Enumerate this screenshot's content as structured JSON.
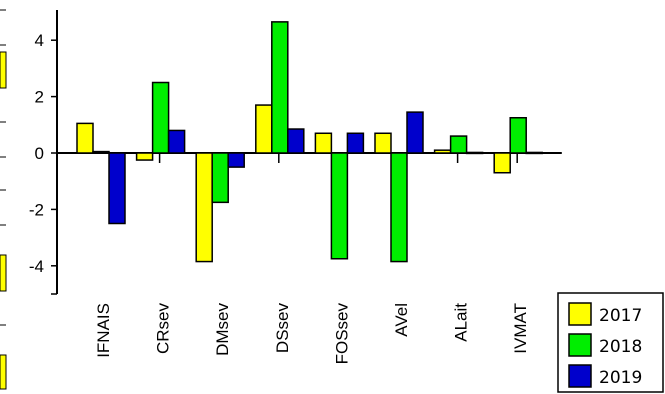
{
  "chart_data": {
    "type": "bar",
    "categories": [
      "IFNAIS",
      "CRsev",
      "DMsev",
      "DSsev",
      "FOSsev",
      "AVel",
      "ALait",
      "IVMAT"
    ],
    "series": [
      {
        "name": "2017",
        "color": "#ffff00",
        "values": [
          1.05,
          -0.25,
          -3.85,
          1.7,
          0.7,
          0.7,
          0.1,
          -0.7
        ]
      },
      {
        "name": "2018",
        "color": "#00ee00",
        "values": [
          0.05,
          2.5,
          -1.75,
          4.65,
          -3.75,
          -3.85,
          0.6,
          1.25
        ]
      },
      {
        "name": "2019",
        "color": "#0000cc",
        "values": [
          -2.5,
          0.8,
          -0.5,
          0.85,
          0.7,
          1.45,
          0.02,
          0.02
        ]
      }
    ],
    "yticks": [
      "4",
      "2",
      "0",
      "-2",
      "-4"
    ],
    "ylim": [
      -5,
      5
    ],
    "legend_position": "bottom-right",
    "grid": false
  }
}
